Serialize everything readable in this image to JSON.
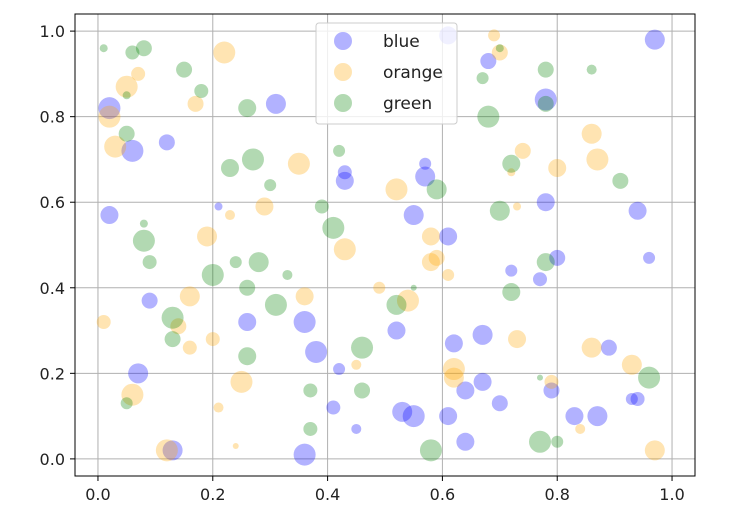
{
  "chart_data": {
    "type": "scatter",
    "title": "",
    "xlabel": "",
    "ylabel": "",
    "xlim": [
      -0.04,
      1.04
    ],
    "ylim": [
      -0.04,
      1.04
    ],
    "xticks": [
      "0.0",
      "0.2",
      "0.4",
      "0.6",
      "0.8",
      "1.0"
    ],
    "yticks": [
      "0.0",
      "0.2",
      "0.4",
      "0.6",
      "0.8",
      "1.0"
    ],
    "grid": true,
    "legend_position": "top-center",
    "series": [
      {
        "name": "blue",
        "color": "#0000ff",
        "points": [
          {
            "x": 0.02,
            "y": 0.82,
            "s": 11
          },
          {
            "x": 0.06,
            "y": 0.72,
            "s": 11
          },
          {
            "x": 0.12,
            "y": 0.74,
            "s": 8
          },
          {
            "x": 0.31,
            "y": 0.83,
            "s": 10
          },
          {
            "x": 0.61,
            "y": 0.99,
            "s": 9
          },
          {
            "x": 0.97,
            "y": 0.98,
            "s": 10
          },
          {
            "x": 0.68,
            "y": 0.93,
            "s": 8
          },
          {
            "x": 0.78,
            "y": 0.84,
            "s": 11
          },
          {
            "x": 0.02,
            "y": 0.57,
            "s": 9
          },
          {
            "x": 0.21,
            "y": 0.59,
            "s": 4
          },
          {
            "x": 0.43,
            "y": 0.67,
            "s": 7
          },
          {
            "x": 0.43,
            "y": 0.65,
            "s": 9
          },
          {
            "x": 0.57,
            "y": 0.69,
            "s": 6
          },
          {
            "x": 0.57,
            "y": 0.66,
            "s": 10
          },
          {
            "x": 0.55,
            "y": 0.57,
            "s": 10
          },
          {
            "x": 0.61,
            "y": 0.52,
            "s": 9
          },
          {
            "x": 0.78,
            "y": 0.6,
            "s": 9
          },
          {
            "x": 0.94,
            "y": 0.58,
            "s": 9
          },
          {
            "x": 0.8,
            "y": 0.47,
            "s": 8
          },
          {
            "x": 0.96,
            "y": 0.47,
            "s": 6
          },
          {
            "x": 0.72,
            "y": 0.44,
            "s": 6
          },
          {
            "x": 0.77,
            "y": 0.42,
            "s": 7
          },
          {
            "x": 0.09,
            "y": 0.37,
            "s": 8
          },
          {
            "x": 0.26,
            "y": 0.32,
            "s": 9
          },
          {
            "x": 0.36,
            "y": 0.32,
            "s": 11
          },
          {
            "x": 0.52,
            "y": 0.3,
            "s": 9
          },
          {
            "x": 0.62,
            "y": 0.27,
            "s": 9
          },
          {
            "x": 0.67,
            "y": 0.29,
            "s": 10
          },
          {
            "x": 0.89,
            "y": 0.26,
            "s": 8
          },
          {
            "x": 0.38,
            "y": 0.25,
            "s": 11
          },
          {
            "x": 0.07,
            "y": 0.2,
            "s": 10
          },
          {
            "x": 0.42,
            "y": 0.21,
            "s": 6
          },
          {
            "x": 0.64,
            "y": 0.16,
            "s": 9
          },
          {
            "x": 0.67,
            "y": 0.18,
            "s": 9
          },
          {
            "x": 0.79,
            "y": 0.16,
            "s": 8
          },
          {
            "x": 0.94,
            "y": 0.14,
            "s": 7
          },
          {
            "x": 0.53,
            "y": 0.11,
            "s": 10
          },
          {
            "x": 0.55,
            "y": 0.1,
            "s": 11
          },
          {
            "x": 0.61,
            "y": 0.1,
            "s": 9
          },
          {
            "x": 0.83,
            "y": 0.1,
            "s": 9
          },
          {
            "x": 0.87,
            "y": 0.1,
            "s": 10
          },
          {
            "x": 0.7,
            "y": 0.13,
            "s": 8
          },
          {
            "x": 0.93,
            "y": 0.14,
            "s": 6
          },
          {
            "x": 0.41,
            "y": 0.12,
            "s": 7
          },
          {
            "x": 0.45,
            "y": 0.07,
            "s": 5
          },
          {
            "x": 0.64,
            "y": 0.04,
            "s": 9
          },
          {
            "x": 0.13,
            "y": 0.02,
            "s": 10
          },
          {
            "x": 0.36,
            "y": 0.01,
            "s": 11
          }
        ]
      },
      {
        "name": "orange",
        "color": "#ffa500",
        "points": [
          {
            "x": 0.22,
            "y": 0.95,
            "s": 11
          },
          {
            "x": 0.05,
            "y": 0.87,
            "s": 11
          },
          {
            "x": 0.07,
            "y": 0.9,
            "s": 7
          },
          {
            "x": 0.17,
            "y": 0.83,
            "s": 8
          },
          {
            "x": 0.02,
            "y": 0.8,
            "s": 11
          },
          {
            "x": 0.03,
            "y": 0.73,
            "s": 11
          },
          {
            "x": 0.69,
            "y": 0.99,
            "s": 6
          },
          {
            "x": 0.7,
            "y": 0.95,
            "s": 8
          },
          {
            "x": 0.35,
            "y": 0.69,
            "s": 11
          },
          {
            "x": 0.74,
            "y": 0.72,
            "s": 8
          },
          {
            "x": 0.8,
            "y": 0.68,
            "s": 9
          },
          {
            "x": 0.86,
            "y": 0.76,
            "s": 10
          },
          {
            "x": 0.87,
            "y": 0.7,
            "s": 11
          },
          {
            "x": 0.52,
            "y": 0.63,
            "s": 11
          },
          {
            "x": 0.29,
            "y": 0.59,
            "s": 9
          },
          {
            "x": 0.23,
            "y": 0.57,
            "s": 5
          },
          {
            "x": 0.73,
            "y": 0.59,
            "s": 4
          },
          {
            "x": 0.72,
            "y": 0.67,
            "s": 4
          },
          {
            "x": 0.19,
            "y": 0.52,
            "s": 10
          },
          {
            "x": 0.43,
            "y": 0.49,
            "s": 11
          },
          {
            "x": 0.58,
            "y": 0.52,
            "s": 9
          },
          {
            "x": 0.59,
            "y": 0.47,
            "s": 8
          },
          {
            "x": 0.58,
            "y": 0.46,
            "s": 9
          },
          {
            "x": 0.61,
            "y": 0.43,
            "s": 6
          },
          {
            "x": 0.16,
            "y": 0.38,
            "s": 10
          },
          {
            "x": 0.36,
            "y": 0.38,
            "s": 9
          },
          {
            "x": 0.49,
            "y": 0.4,
            "s": 6
          },
          {
            "x": 0.54,
            "y": 0.37,
            "s": 11
          },
          {
            "x": 0.14,
            "y": 0.31,
            "s": 8
          },
          {
            "x": 0.01,
            "y": 0.32,
            "s": 7
          },
          {
            "x": 0.16,
            "y": 0.26,
            "s": 7
          },
          {
            "x": 0.2,
            "y": 0.28,
            "s": 7
          },
          {
            "x": 0.73,
            "y": 0.28,
            "s": 9
          },
          {
            "x": 0.86,
            "y": 0.26,
            "s": 10
          },
          {
            "x": 0.93,
            "y": 0.22,
            "s": 10
          },
          {
            "x": 0.62,
            "y": 0.19,
            "s": 10
          },
          {
            "x": 0.62,
            "y": 0.21,
            "s": 11
          },
          {
            "x": 0.45,
            "y": 0.22,
            "s": 5
          },
          {
            "x": 0.25,
            "y": 0.18,
            "s": 11
          },
          {
            "x": 0.06,
            "y": 0.15,
            "s": 11
          },
          {
            "x": 0.21,
            "y": 0.12,
            "s": 5
          },
          {
            "x": 0.84,
            "y": 0.07,
            "s": 5
          },
          {
            "x": 0.12,
            "y": 0.02,
            "s": 11
          },
          {
            "x": 0.24,
            "y": 0.03,
            "s": 3
          },
          {
            "x": 0.97,
            "y": 0.02,
            "s": 10
          },
          {
            "x": 0.79,
            "y": 0.18,
            "s": 7
          }
        ]
      },
      {
        "name": "green",
        "color": "#008000",
        "points": [
          {
            "x": 0.01,
            "y": 0.96,
            "s": 4
          },
          {
            "x": 0.06,
            "y": 0.95,
            "s": 7
          },
          {
            "x": 0.08,
            "y": 0.96,
            "s": 8
          },
          {
            "x": 0.15,
            "y": 0.91,
            "s": 8
          },
          {
            "x": 0.18,
            "y": 0.86,
            "s": 7
          },
          {
            "x": 0.26,
            "y": 0.82,
            "s": 9
          },
          {
            "x": 0.05,
            "y": 0.85,
            "s": 4
          },
          {
            "x": 0.05,
            "y": 0.76,
            "s": 8
          },
          {
            "x": 0.27,
            "y": 0.7,
            "s": 11
          },
          {
            "x": 0.23,
            "y": 0.68,
            "s": 9
          },
          {
            "x": 0.3,
            "y": 0.64,
            "s": 6
          },
          {
            "x": 0.39,
            "y": 0.59,
            "s": 7
          },
          {
            "x": 0.42,
            "y": 0.72,
            "s": 6
          },
          {
            "x": 0.59,
            "y": 0.63,
            "s": 10
          },
          {
            "x": 0.7,
            "y": 0.58,
            "s": 10
          },
          {
            "x": 0.72,
            "y": 0.69,
            "s": 9
          },
          {
            "x": 0.68,
            "y": 0.8,
            "s": 11
          },
          {
            "x": 0.67,
            "y": 0.89,
            "s": 6
          },
          {
            "x": 0.78,
            "y": 0.91,
            "s": 8
          },
          {
            "x": 0.78,
            "y": 0.83,
            "s": 8
          },
          {
            "x": 0.86,
            "y": 0.91,
            "s": 5
          },
          {
            "x": 0.7,
            "y": 0.96,
            "s": 4
          },
          {
            "x": 0.91,
            "y": 0.65,
            "s": 8
          },
          {
            "x": 0.08,
            "y": 0.51,
            "s": 11
          },
          {
            "x": 0.08,
            "y": 0.55,
            "s": 4
          },
          {
            "x": 0.09,
            "y": 0.46,
            "s": 7
          },
          {
            "x": 0.2,
            "y": 0.43,
            "s": 11
          },
          {
            "x": 0.24,
            "y": 0.46,
            "s": 6
          },
          {
            "x": 0.28,
            "y": 0.46,
            "s": 10
          },
          {
            "x": 0.26,
            "y": 0.4,
            "s": 8
          },
          {
            "x": 0.31,
            "y": 0.36,
            "s": 11
          },
          {
            "x": 0.33,
            "y": 0.43,
            "s": 5
          },
          {
            "x": 0.41,
            "y": 0.54,
            "s": 11
          },
          {
            "x": 0.52,
            "y": 0.36,
            "s": 10
          },
          {
            "x": 0.55,
            "y": 0.4,
            "s": 3
          },
          {
            "x": 0.72,
            "y": 0.39,
            "s": 9
          },
          {
            "x": 0.78,
            "y": 0.46,
            "s": 9
          },
          {
            "x": 0.13,
            "y": 0.33,
            "s": 11
          },
          {
            "x": 0.13,
            "y": 0.28,
            "s": 8
          },
          {
            "x": 0.26,
            "y": 0.24,
            "s": 9
          },
          {
            "x": 0.46,
            "y": 0.26,
            "s": 11
          },
          {
            "x": 0.37,
            "y": 0.16,
            "s": 7
          },
          {
            "x": 0.46,
            "y": 0.16,
            "s": 8
          },
          {
            "x": 0.96,
            "y": 0.19,
            "s": 11
          },
          {
            "x": 0.77,
            "y": 0.19,
            "s": 3
          },
          {
            "x": 0.05,
            "y": 0.13,
            "s": 6
          },
          {
            "x": 0.37,
            "y": 0.07,
            "s": 7
          },
          {
            "x": 0.58,
            "y": 0.02,
            "s": 11
          },
          {
            "x": 0.77,
            "y": 0.04,
            "s": 11
          },
          {
            "x": 0.8,
            "y": 0.04,
            "s": 6
          }
        ]
      }
    ]
  }
}
